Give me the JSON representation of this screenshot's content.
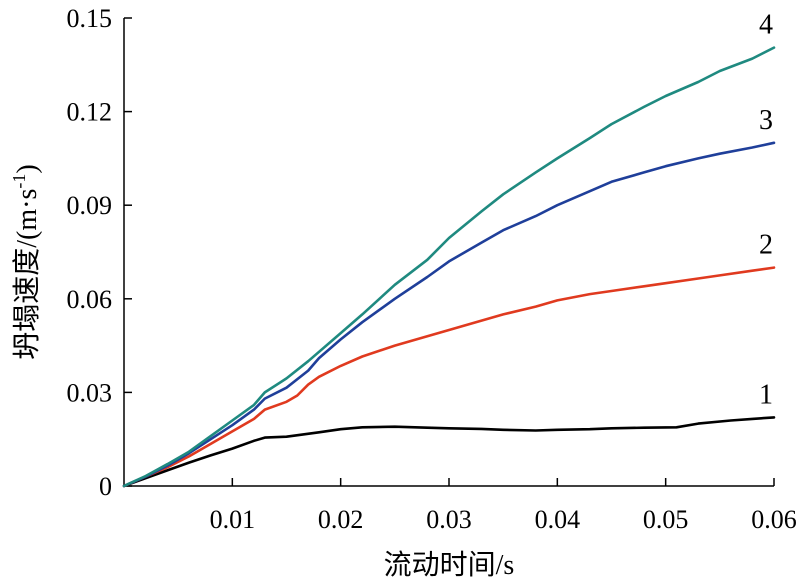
{
  "chart_data": {
    "type": "line",
    "xlabel": "流动时间/s",
    "ylabel": "坍塌速度/(m·s",
    "ylabel_sup": "-1",
    "ylabel_close": ")",
    "xlim": [
      0,
      0.06
    ],
    "ylim": [
      0,
      0.15
    ],
    "x_ticks": [
      0.01,
      0.02,
      0.03,
      0.04,
      0.05,
      0.06
    ],
    "x_tick_labels": [
      "0.01",
      "0.02",
      "0.03",
      "0.04",
      "0.05",
      "0.06"
    ],
    "y_ticks": [
      0,
      0.03,
      0.06,
      0.09,
      0.12,
      0.15
    ],
    "y_tick_labels": [
      "0",
      "0.03",
      "0.06",
      "0.09",
      "0.12",
      "0.15"
    ],
    "grid": false,
    "series": [
      {
        "name": "1",
        "color": "#000000",
        "points": [
          [
            0,
            0
          ],
          [
            0.002,
            0.0025
          ],
          [
            0.004,
            0.005
          ],
          [
            0.006,
            0.0075
          ],
          [
            0.008,
            0.0098
          ],
          [
            0.01,
            0.012
          ],
          [
            0.012,
            0.0145
          ],
          [
            0.013,
            0.0155
          ],
          [
            0.015,
            0.0158
          ],
          [
            0.018,
            0.0172
          ],
          [
            0.02,
            0.0182
          ],
          [
            0.022,
            0.0188
          ],
          [
            0.025,
            0.019
          ],
          [
            0.028,
            0.0187
          ],
          [
            0.03,
            0.0185
          ],
          [
            0.033,
            0.0183
          ],
          [
            0.035,
            0.018
          ],
          [
            0.038,
            0.0178
          ],
          [
            0.04,
            0.018
          ],
          [
            0.043,
            0.0182
          ],
          [
            0.045,
            0.0185
          ],
          [
            0.048,
            0.0187
          ],
          [
            0.051,
            0.0188
          ],
          [
            0.053,
            0.02
          ],
          [
            0.056,
            0.021
          ],
          [
            0.058,
            0.0215
          ],
          [
            0.06,
            0.022
          ]
        ]
      },
      {
        "name": "2",
        "color": "#e03a1f",
        "points": [
          [
            0,
            0
          ],
          [
            0.002,
            0.003
          ],
          [
            0.004,
            0.006
          ],
          [
            0.006,
            0.0095
          ],
          [
            0.008,
            0.0135
          ],
          [
            0.01,
            0.0175
          ],
          [
            0.012,
            0.0215
          ],
          [
            0.013,
            0.0245
          ],
          [
            0.015,
            0.027
          ],
          [
            0.016,
            0.029
          ],
          [
            0.017,
            0.0325
          ],
          [
            0.018,
            0.035
          ],
          [
            0.02,
            0.0385
          ],
          [
            0.022,
            0.0415
          ],
          [
            0.025,
            0.045
          ],
          [
            0.028,
            0.048
          ],
          [
            0.03,
            0.05
          ],
          [
            0.033,
            0.053
          ],
          [
            0.035,
            0.055
          ],
          [
            0.038,
            0.0575
          ],
          [
            0.04,
            0.0595
          ],
          [
            0.043,
            0.0615
          ],
          [
            0.045,
            0.0625
          ],
          [
            0.048,
            0.064
          ],
          [
            0.05,
            0.065
          ],
          [
            0.053,
            0.0665
          ],
          [
            0.055,
            0.0675
          ],
          [
            0.058,
            0.069
          ],
          [
            0.06,
            0.07
          ]
        ]
      },
      {
        "name": "3",
        "color": "#1f3f9a",
        "points": [
          [
            0,
            0
          ],
          [
            0.002,
            0.003
          ],
          [
            0.004,
            0.0065
          ],
          [
            0.006,
            0.0105
          ],
          [
            0.008,
            0.015
          ],
          [
            0.01,
            0.0195
          ],
          [
            0.012,
            0.0245
          ],
          [
            0.013,
            0.028
          ],
          [
            0.015,
            0.0315
          ],
          [
            0.017,
            0.037
          ],
          [
            0.018,
            0.041
          ],
          [
            0.02,
            0.047
          ],
          [
            0.022,
            0.0525
          ],
          [
            0.025,
            0.06
          ],
          [
            0.028,
            0.067
          ],
          [
            0.03,
            0.072
          ],
          [
            0.033,
            0.078
          ],
          [
            0.035,
            0.082
          ],
          [
            0.038,
            0.0865
          ],
          [
            0.04,
            0.09
          ],
          [
            0.043,
            0.0945
          ],
          [
            0.045,
            0.0975
          ],
          [
            0.048,
            0.1005
          ],
          [
            0.05,
            0.1025
          ],
          [
            0.053,
            0.105
          ],
          [
            0.055,
            0.1065
          ],
          [
            0.058,
            0.1085
          ],
          [
            0.06,
            0.11
          ]
        ]
      },
      {
        "name": "4",
        "color": "#1f8a80",
        "points": [
          [
            0,
            0
          ],
          [
            0.002,
            0.0032
          ],
          [
            0.004,
            0.007
          ],
          [
            0.006,
            0.011
          ],
          [
            0.008,
            0.016
          ],
          [
            0.01,
            0.021
          ],
          [
            0.012,
            0.026
          ],
          [
            0.013,
            0.03
          ],
          [
            0.015,
            0.0345
          ],
          [
            0.017,
            0.04
          ],
          [
            0.02,
            0.049
          ],
          [
            0.022,
            0.055
          ],
          [
            0.025,
            0.0645
          ],
          [
            0.028,
            0.0725
          ],
          [
            0.03,
            0.0795
          ],
          [
            0.033,
            0.088
          ],
          [
            0.035,
            0.0935
          ],
          [
            0.038,
            0.1005
          ],
          [
            0.04,
            0.105
          ],
          [
            0.043,
            0.1115
          ],
          [
            0.045,
            0.116
          ],
          [
            0.048,
            0.1215
          ],
          [
            0.05,
            0.125
          ],
          [
            0.053,
            0.1295
          ],
          [
            0.055,
            0.133
          ],
          [
            0.058,
            0.137
          ],
          [
            0.06,
            0.1405
          ]
        ]
      }
    ]
  }
}
